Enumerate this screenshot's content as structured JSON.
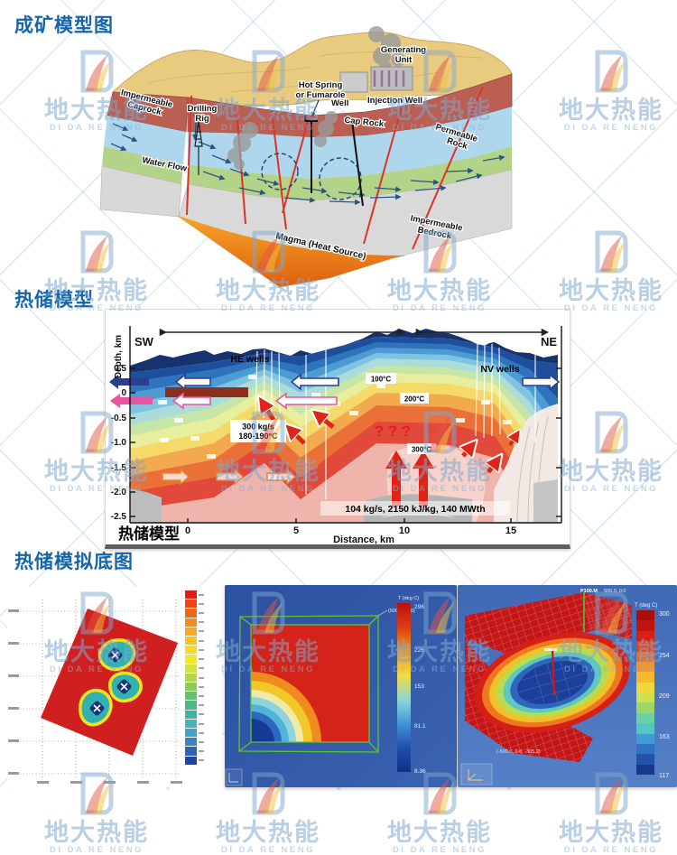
{
  "brand": {
    "name_cn": "地大热能",
    "name_en": "DI DA RE NENG"
  },
  "sections": {
    "s1_title": "成矿模型图",
    "s2_title": "热储模型",
    "s3_title": "热储模拟底图"
  },
  "colors": {
    "accent_blue": "#1565a8",
    "watermark_blue": "#9fc3e2",
    "caprock_red": "#bb5f52",
    "magma_orange": "#f6a528",
    "hot_zone_pink": "#efb4ac"
  },
  "geo_model": {
    "drilling_rig_1": "Drilling",
    "drilling_rig_2": "Rig",
    "generating_1": "Generating",
    "generating_2": "Unit",
    "hot_spring_1": "Hot Spring",
    "hot_spring_2": "or Fumarole",
    "well": "Well",
    "injection_well": "Injection Well",
    "impermeable_caprock_1": "Impermeable",
    "impermeable_caprock_2": "Caprock",
    "cap_rock": "Cap Rock",
    "water_flow": "Water Flow",
    "permeable_rock_1": "Permeable",
    "permeable_rock_2": "Rock",
    "magma": "Magma (Heat Source)",
    "impermeable_bedrock_1": "Impermeable",
    "impermeable_bedrock_2": "Bedrock"
  },
  "reservoir": {
    "sw": "SW",
    "ne": "NE",
    "he_wells": "HE wells",
    "nv_wells": "NV wells",
    "t100": "100°C",
    "t200": "200°C",
    "t300": "300°C",
    "questions": "?   ?   ?",
    "flow1": "300 kg/s",
    "flow2": "180-190°C",
    "production": "104 kg/s, 2150 kJ/kg, 140 MWth",
    "ylabel": "Depth, km",
    "xlabel": "Distance, km",
    "caption": "热储模型",
    "yticks": [
      "0.5",
      "0",
      "-0.5",
      "-1.0",
      "-1.5",
      "-2.0",
      "-2.5"
    ],
    "xticks": [
      "0",
      "5",
      "10",
      "15"
    ]
  },
  "sim_left": {
    "colorbar_colors": [
      "#e51a1a",
      "#ee4312",
      "#f56613",
      "#f88b16",
      "#f9a91a",
      "#fac41e",
      "#f9db24",
      "#f0e72e",
      "#d6e23a",
      "#b2d847",
      "#8ccc55",
      "#66c06a",
      "#4cb988",
      "#3db4a4",
      "#45b2bd",
      "#45a0cc",
      "#3a83c6",
      "#2c63b4",
      "#1f459e"
    ]
  },
  "sim_mid": {
    "cb_title": "T (deg C)",
    "ticks": [
      "296",
      "226",
      "153",
      "81.1",
      "8.36"
    ],
    "note": "(500.0, 500)",
    "gradient": [
      "#b81010",
      "#e03c12",
      "#f0981f",
      "#f2dc42",
      "#8fd6d8",
      "#3e96d4",
      "#1f4fae",
      "#122f86"
    ]
  },
  "sim_right": {
    "header_bold": "P100.M",
    "header_rest": "500.0, 0.0",
    "cb_title": "T (deg C)",
    "ticks": [
      "300",
      "254",
      "209",
      "163",
      "117"
    ],
    "footnote": "(-500.0, 0.0, -305.2)",
    "colorbar_colors": [
      "#a90d0d",
      "#c11310",
      "#d92113",
      "#ea3f17",
      "#f2691d",
      "#f59426",
      "#f6ba2c",
      "#f0d83a",
      "#cfe04c",
      "#9cd766",
      "#6cd0a2",
      "#55c6c6",
      "#3f9cd6",
      "#2f74c2",
      "#2452a8",
      "#1b3890"
    ]
  }
}
